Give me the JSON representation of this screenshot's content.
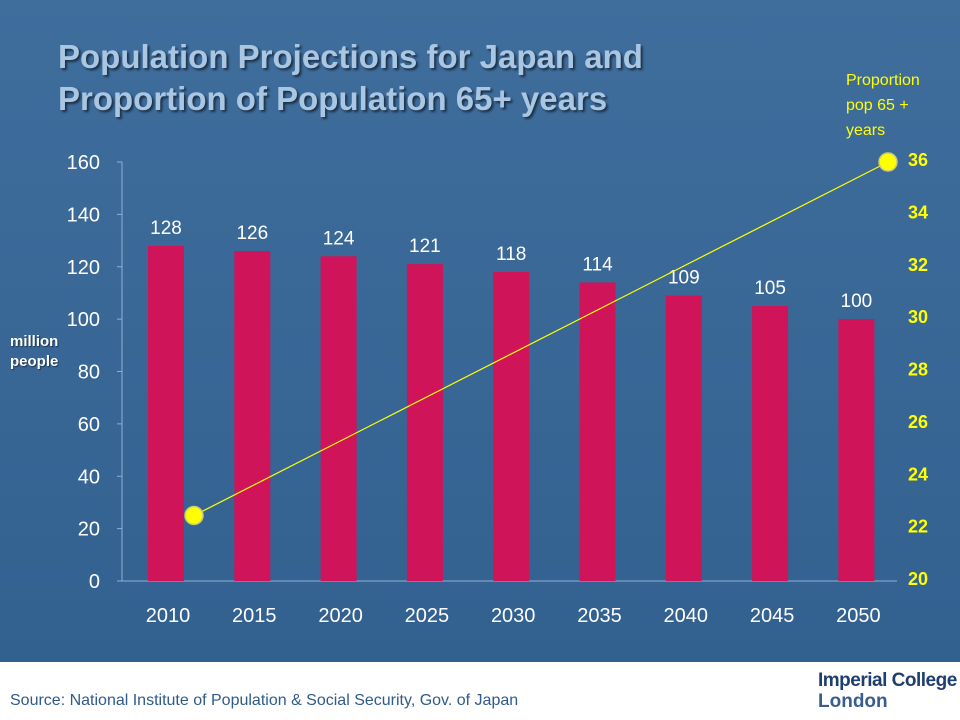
{
  "slide": {
    "title_line1": "Population Projections for Japan and",
    "title_line2": "Proportion of Population 65+ years",
    "right_axis_label_line1": "Proportion",
    "right_axis_label_line2": "pop 65 +",
    "right_axis_label_line3": "years",
    "left_axis_label_line1": "million",
    "left_axis_label_line2": "people",
    "source": "Source: National Institute of Population & Social Security, Gov. of Japan",
    "logo_line1": "Imperial College",
    "logo_line2": "London"
  },
  "colors": {
    "background": "#3a6898",
    "bar": "#d0145a",
    "line": "#ffff00",
    "right_ticks": "#ffff00"
  },
  "chart_data": {
    "type": "bar",
    "categories": [
      "2010",
      "2015",
      "2020",
      "2025",
      "2030",
      "2035",
      "2040",
      "2045",
      "2050"
    ],
    "series": [
      {
        "values": [
          128,
          126,
          124,
          121,
          118,
          114,
          109,
          105,
          100
        ]
      }
    ],
    "data_labels": [
      "128",
      "126",
      "124",
      "121",
      "118",
      "114",
      "109",
      "105",
      "100"
    ],
    "ylim": [
      0,
      160
    ],
    "yticks": [
      "0",
      "20",
      "40",
      "60",
      "80",
      "100",
      "120",
      "140",
      "160"
    ],
    "secondary_axis": {
      "ylim": [
        20,
        36
      ],
      "ticks": [
        "20",
        "22",
        "24",
        "26",
        "28",
        "30",
        "32",
        "34",
        "36"
      ]
    },
    "line_series": {
      "type": "line",
      "points": [
        {
          "x": "2010",
          "y": 22.5
        },
        {
          "x": "2050",
          "y": 36
        }
      ]
    },
    "grid": false
  }
}
